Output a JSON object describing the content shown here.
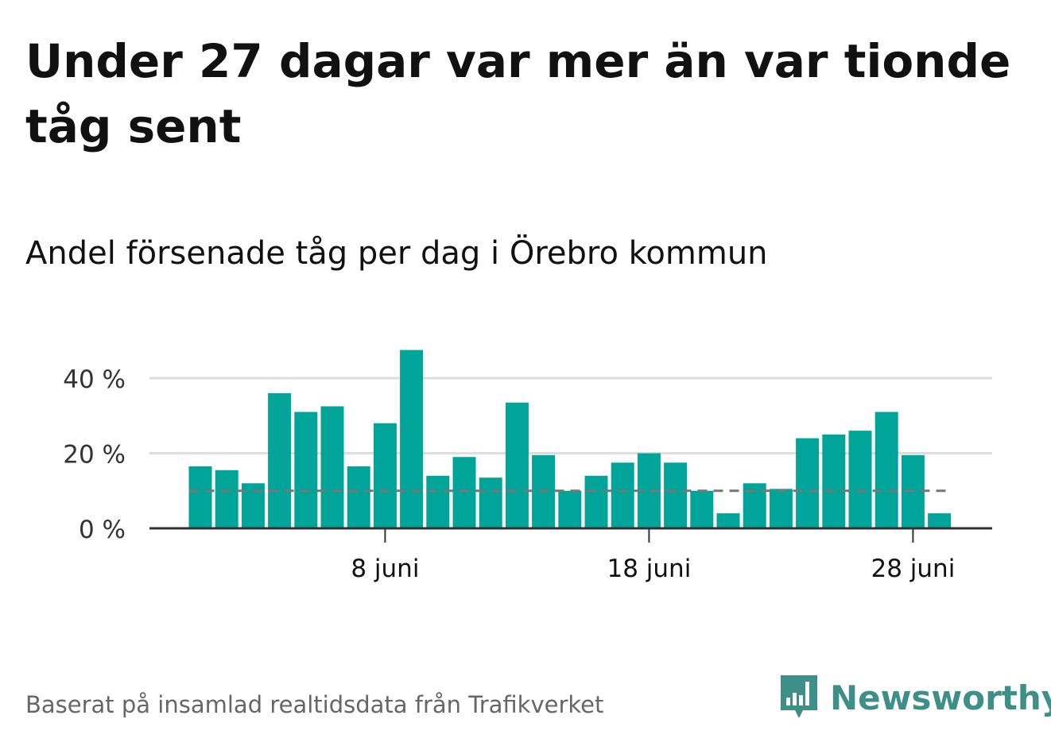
{
  "title": "Under 27 dagar var mer än var tionde tåg sent",
  "subtitle": "Andel försenade tåg per dag i Örebro kommun",
  "footer": "Baserat på insamlad realtidsdata från Trafikverket",
  "brand": {
    "name": "Newsworthy",
    "icon": "newsworthy-logo-icon",
    "color": "#3d8f87"
  },
  "colors": {
    "bar": "#00a499",
    "reference_line": "#777777",
    "grid": "#dddddd",
    "axis": "#333333"
  },
  "chart_data": {
    "type": "bar",
    "categories": [
      "1 juni",
      "2 juni",
      "3 juni",
      "4 juni",
      "5 juni",
      "6 juni",
      "7 juni",
      "8 juni",
      "9 juni",
      "10 juni",
      "11 juni",
      "12 juni",
      "13 juni",
      "14 juni",
      "15 juni",
      "16 juni",
      "17 juni",
      "18 juni",
      "19 juni",
      "20 juni",
      "21 juni",
      "22 juni",
      "23 juni",
      "24 juni",
      "25 juni",
      "26 juni",
      "27 juni",
      "28 juni",
      "29 juni"
    ],
    "values": [
      16.5,
      15.5,
      12,
      36,
      31,
      32.5,
      16.5,
      28,
      47.5,
      14,
      19,
      13.5,
      33.5,
      19.5,
      10,
      14,
      17.5,
      20,
      17.5,
      10,
      4,
      12,
      10.5,
      24,
      25,
      26,
      31,
      19.5,
      4
    ],
    "ylim": [
      0,
      50
    ],
    "yticks": [
      0,
      20,
      40
    ],
    "ytick_labels": [
      "0 %",
      "20 %",
      "40 %"
    ],
    "xticks": [
      "8 juni",
      "18 juni",
      "28 juni"
    ],
    "reference_value": 10,
    "grid": true
  }
}
